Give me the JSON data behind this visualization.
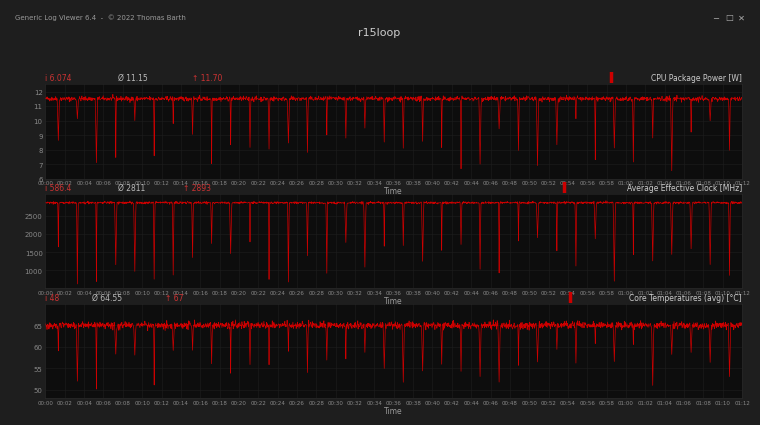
{
  "title": "r15loop",
  "window_title": "Generic Log Viewer 6.4  -  © 2022 Thomas Barth",
  "bg_color": "#1e1e1e",
  "titlebar_color": "#2b2b2b",
  "panel_bg": "#0d0d0d",
  "grid_color": "#1e1e1e",
  "line_color": "#cc0000",
  "text_color": "#bbbbbb",
  "xlabel": "Time",
  "time_ticks": [
    "00:00",
    "00:02",
    "00:04",
    "00:06",
    "00:08",
    "00:10",
    "00:12",
    "00:14",
    "00:16",
    "00:18",
    "00:20",
    "00:22",
    "00:24",
    "00:26",
    "00:28",
    "00:30",
    "00:32",
    "00:34",
    "00:36",
    "00:38",
    "00:40",
    "00:42",
    "00:44",
    "00:46",
    "00:48",
    "00:50",
    "00:52",
    "00:54",
    "00:56",
    "00:58",
    "01:00",
    "01:02",
    "01:04",
    "01:06",
    "01:08",
    "01:10",
    "01:12"
  ],
  "panels": [
    {
      "label": "CPU Package Power [W]",
      "stat_min": "i 6.074",
      "stat_avg": "Ø 11.15",
      "stat_max": "↑ 11.70",
      "ymin": 6,
      "ymax": 12.5,
      "yticks": [
        6,
        7,
        8,
        9,
        10,
        11,
        12
      ],
      "baseline": 11.5,
      "spike_min": 6.5,
      "spike_max": 10.2,
      "noise": 0.08,
      "num_spikes": 36
    },
    {
      "label": "Average Effective Clock [MHz]",
      "stat_min": "i 586.4",
      "stat_avg": "Ø 2811",
      "stat_max": "↑ 2893",
      "ymin": 500,
      "ymax": 3100,
      "yticks": [
        1000,
        1500,
        2000,
        2500
      ],
      "baseline": 2860,
      "spike_min": 580,
      "spike_max": 1900,
      "noise": 15,
      "num_spikes": 36
    },
    {
      "label": "Core Temperatures (avg) [°C]",
      "stat_min": "i 48",
      "stat_avg": "Ø 64.55",
      "stat_max": "↑ 67",
      "ymin": 48,
      "ymax": 70,
      "yticks": [
        50,
        55,
        60,
        65
      ],
      "baseline": 65.0,
      "spike_min": 50,
      "spike_max": 61,
      "noise": 0.4,
      "num_spikes": 36
    }
  ]
}
